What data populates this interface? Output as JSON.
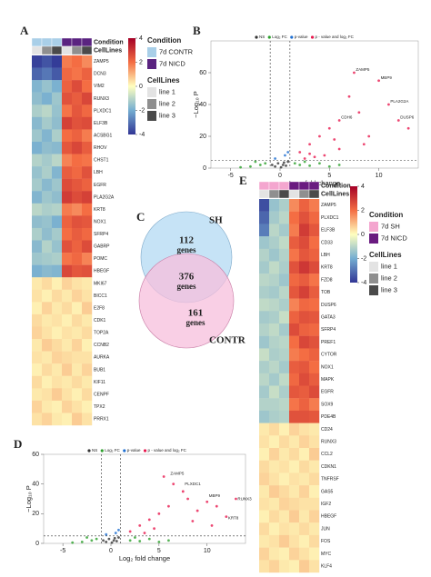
{
  "chart_data": [
    {
      "type": "heatmap",
      "label": "A",
      "annotation_titles": [
        "Condition",
        "CellLines"
      ],
      "conditions": [
        {
          "name": "7d CONTR",
          "color": "#a9cfe8"
        },
        {
          "name": "7d NICD",
          "color": "#5a2380"
        }
      ],
      "cell_lines": [
        {
          "name": "line 1",
          "color": "#e3e3e3"
        },
        {
          "name": "line 2",
          "color": "#8f8f8f"
        },
        {
          "name": "line 3",
          "color": "#4a4a4a"
        }
      ],
      "column_conditions": [
        0,
        0,
        0,
        1,
        1,
        1
      ],
      "column_cell_lines": [
        0,
        1,
        2,
        0,
        1,
        2
      ],
      "scale_lim": [
        -4,
        4
      ],
      "scale_ticks": [
        4,
        2,
        0,
        -2,
        -4
      ],
      "palette": [
        "#313695",
        "#74add1",
        "#ffffbf",
        "#f46d43",
        "#a50026"
      ],
      "genes": [
        "ZAMP5",
        "DCN3",
        "VIM2",
        "RUNX3",
        "PLXDC1",
        "ELF3B",
        "ACSBG1",
        "RHOV",
        "CHST1",
        "LBH",
        "EGFR",
        "PLA2G2A",
        "KRT8",
        "NOX1",
        "SFRP4",
        "GABRP",
        "POMC",
        "HBEGF",
        "MKI67",
        "BICC1",
        "E2F8",
        "CDK1",
        "TOP2A",
        "CCNB2",
        "AURKA",
        "BUB1",
        "KIF11",
        "CENPF",
        "TPX2",
        "PRRX1"
      ],
      "values": [
        [
          -3.8,
          -3.5,
          -3.9,
          1.8,
          2.0,
          1.6
        ],
        [
          -3.2,
          -2.9,
          -3.4,
          2.1,
          1.9,
          2.2
        ],
        [
          -1.8,
          -1.5,
          -1.9,
          2.2,
          2.6,
          2.0
        ],
        [
          -1.6,
          -1.9,
          -1.4,
          2.5,
          2.3,
          2.7
        ],
        [
          -1.2,
          -1.0,
          -1.5,
          1.9,
          2.4,
          2.1
        ],
        [
          -1.7,
          -1.3,
          -1.6,
          2.8,
          2.5,
          2.6
        ],
        [
          -1.4,
          -1.8,
          -1.2,
          2.0,
          2.2,
          1.8
        ],
        [
          -1.9,
          -1.6,
          -1.7,
          2.4,
          2.7,
          2.3
        ],
        [
          -1.1,
          -1.3,
          -1.0,
          1.7,
          2.0,
          1.9
        ],
        [
          -1.5,
          -1.2,
          -1.8,
          2.3,
          2.1,
          2.5
        ],
        [
          -1.3,
          -1.7,
          -1.4,
          2.6,
          2.4,
          2.2
        ],
        [
          -1.8,
          -1.4,
          -1.6,
          2.9,
          2.6,
          2.8
        ],
        [
          -1.0,
          -1.2,
          -1.1,
          1.8,
          1.6,
          2.0
        ],
        [
          -1.6,
          -1.5,
          -1.9,
          2.2,
          2.5,
          2.4
        ],
        [
          -1.2,
          -1.6,
          -1.3,
          2.0,
          2.3,
          2.1
        ],
        [
          -1.7,
          -1.1,
          -1.5,
          2.5,
          2.2,
          2.6
        ],
        [
          -1.4,
          -1.3,
          -1.2,
          1.9,
          2.1,
          1.7
        ],
        [
          -1.9,
          -1.7,
          -1.8,
          2.7,
          2.4,
          2.5
        ],
        [
          0.3,
          0.5,
          0.2,
          0.6,
          0.4,
          0.3
        ],
        [
          0.4,
          0.2,
          0.5,
          0.3,
          0.6,
          0.4
        ],
        [
          0.2,
          0.6,
          0.3,
          0.5,
          0.2,
          0.7
        ],
        [
          0.5,
          0.3,
          0.4,
          0.2,
          0.5,
          0.3
        ],
        [
          0.6,
          0.4,
          0.2,
          0.4,
          0.3,
          0.5
        ],
        [
          0.3,
          0.7,
          0.5,
          0.3,
          0.6,
          0.2
        ],
        [
          0.4,
          0.3,
          0.6,
          0.5,
          0.4,
          0.4
        ],
        [
          0.2,
          0.5,
          0.3,
          0.7,
          0.3,
          0.6
        ],
        [
          0.5,
          0.2,
          0.4,
          0.3,
          0.5,
          0.3
        ],
        [
          0.3,
          0.4,
          0.7,
          0.4,
          0.2,
          0.5
        ],
        [
          0.6,
          0.3,
          0.2,
          0.6,
          0.4,
          0.2
        ],
        [
          0.4,
          0.6,
          0.3,
          0.2,
          0.7,
          0.4
        ]
      ]
    },
    {
      "type": "volcano",
      "label": "B",
      "x_label": "Log₂ fold change",
      "y_label": "−Log₁₀ P",
      "xlim": [
        -7,
        14
      ],
      "ylim": [
        0,
        80
      ],
      "xticks": [
        -5,
        0,
        5,
        10
      ],
      "yticks": [
        0,
        20,
        40,
        60
      ],
      "fc_cutoff": [
        -1,
        1
      ],
      "p_cutoff": 5,
      "series": [
        {
          "name": "NS",
          "color": "#333333",
          "x": [
            -0.5,
            0.3,
            0.6,
            -0.2,
            0.8,
            0.1,
            -0.8,
            0.4
          ],
          "y": [
            1,
            2,
            1.5,
            3,
            4,
            0.5,
            2,
            3.5
          ]
        },
        {
          "name": "Log₂ FC",
          "color": "#2ca02c",
          "x": [
            -3,
            -2,
            -1.5,
            2,
            3,
            4,
            -4,
            2.5,
            5,
            -2.5,
            6,
            1.5
          ],
          "y": [
            1,
            2,
            3,
            2,
            1.5,
            3,
            0.5,
            4,
            1,
            4,
            2,
            3
          ]
        },
        {
          "name": "p-value",
          "color": "#1f6fd1",
          "x": [
            0.5,
            -0.5,
            0.8
          ],
          "y": [
            8,
            6,
            10
          ]
        },
        {
          "name": "p - value and log₂ FC",
          "color": "#e8194f",
          "x": [
            2,
            3,
            4,
            5,
            6,
            7,
            7.5,
            8,
            10,
            11,
            12,
            9,
            6,
            4.5,
            3.5,
            8.5,
            13,
            5.5,
            2.5,
            3
          ],
          "y": [
            10,
            15,
            20,
            25,
            30,
            45,
            60,
            35,
            55,
            40,
            30,
            20,
            12,
            8,
            7,
            15,
            25,
            18,
            6,
            9
          ]
        }
      ],
      "annotations": [
        {
          "text": "ZAMP5",
          "x": 7.5,
          "y": 60
        },
        {
          "text": "MBP9",
          "x": 10,
          "y": 55
        },
        {
          "text": "PLA2G2A",
          "x": 11,
          "y": 40
        },
        {
          "text": "CDH6",
          "x": 6,
          "y": 30
        },
        {
          "text": "DUSP6",
          "x": 12,
          "y": 30
        }
      ]
    },
    {
      "type": "venn",
      "label": "C",
      "sets": [
        {
          "name": "SH",
          "color": "#c6e3f6"
        },
        {
          "name": "CONTR",
          "color": "#f7bfdc"
        }
      ],
      "counts": [
        112,
        376,
        161
      ],
      "unit": "genes"
    },
    {
      "type": "volcano",
      "label": "D",
      "x_label": "Log₂ fold change",
      "y_label": "−Log₁₀ P",
      "xlim": [
        -7,
        14
      ],
      "ylim": [
        0,
        60
      ],
      "xticks": [
        -5,
        0,
        5,
        10
      ],
      "yticks": [
        0,
        20,
        40,
        60
      ],
      "fc_cutoff": [
        -1,
        1
      ],
      "p_cutoff": 5,
      "series": [
        {
          "name": "NS",
          "color": "#333333",
          "x": [
            -0.5,
            0.3,
            0.6,
            -0.2,
            0.8,
            0.1,
            -0.8,
            0.4
          ],
          "y": [
            1,
            2,
            1.5,
            3,
            4,
            0.5,
            2,
            3.5
          ]
        },
        {
          "name": "Log₂ FC",
          "color": "#2ca02c",
          "x": [
            -3,
            -2,
            -1.5,
            2,
            3,
            4,
            -4,
            2.5,
            5,
            -2.5,
            6
          ],
          "y": [
            1,
            2,
            3,
            2,
            1.5,
            3,
            0.5,
            4,
            1,
            4,
            2
          ]
        },
        {
          "name": "p-value",
          "color": "#1f6fd1",
          "x": [
            0.5,
            -0.5,
            0.8
          ],
          "y": [
            7,
            6,
            9
          ]
        },
        {
          "name": "p - value and log₂ FC",
          "color": "#e8194f",
          "x": [
            2,
            3,
            4,
            5,
            6,
            6.5,
            7.5,
            8,
            9,
            10,
            11,
            12,
            13,
            4.5,
            3.5,
            8.5,
            10.5,
            5.5
          ],
          "y": [
            8,
            12,
            16,
            20,
            25,
            40,
            35,
            30,
            22,
            28,
            25,
            18,
            30,
            10,
            7,
            15,
            12,
            45
          ]
        }
      ],
      "annotations": [
        {
          "text": "ZAMP5",
          "x": 6,
          "y": 45
        },
        {
          "text": "PLXDC1",
          "x": 7.5,
          "y": 38
        },
        {
          "text": "MBP9",
          "x": 10,
          "y": 30
        },
        {
          "text": "RUNX3",
          "x": 13,
          "y": 28
        },
        {
          "text": "KRT8",
          "x": 12,
          "y": 15
        }
      ]
    },
    {
      "type": "heatmap",
      "label": "E",
      "annotation_titles": [
        "Condition",
        "CellLines"
      ],
      "conditions": [
        {
          "name": "7d SH",
          "color": "#f4a6cf"
        },
        {
          "name": "7d NICD",
          "color": "#6a1b80"
        }
      ],
      "cell_lines": [
        {
          "name": "line 1",
          "color": "#e3e3e3"
        },
        {
          "name": "line 2",
          "color": "#8f8f8f"
        },
        {
          "name": "line 3",
          "color": "#4a4a4a"
        }
      ],
      "column_conditions": [
        0,
        0,
        0,
        1,
        1,
        1
      ],
      "column_cell_lines": [
        0,
        1,
        2,
        0,
        1,
        2
      ],
      "scale_lim": [
        -4,
        4
      ],
      "scale_ticks": [
        4,
        2,
        0,
        -2,
        -4
      ],
      "palette": [
        "#313695",
        "#74add1",
        "#ffffbf",
        "#f46d43",
        "#a50026"
      ],
      "genes": [
        "ZAMP5",
        "PLXDC1",
        "ELF3B",
        "CD33",
        "LBH",
        "KRT8",
        "FZD8",
        "TOB",
        "DUSP6",
        "GATA3",
        "SFRP4",
        "PREF1",
        "CYTOR",
        "NOX1",
        "MAPK",
        "EGFR",
        "SOX9",
        "PDE4B",
        "CD24",
        "RUNX3",
        "CCL2",
        "CDKN1",
        "TNFRSF",
        "GAS5",
        "IGF2",
        "HBEGF",
        "JUN",
        "FOS",
        "MYC",
        "KLF4"
      ],
      "values": [
        [
          -3.6,
          -1.5,
          -1.2,
          1.6,
          2.2,
          1.8
        ],
        [
          -3.2,
          -1.3,
          -1.0,
          2.0,
          2.5,
          2.1
        ],
        [
          -2.8,
          -1.0,
          -1.3,
          1.8,
          2.9,
          2.4
        ],
        [
          -1.4,
          -1.2,
          -0.9,
          2.3,
          2.6,
          2.0
        ],
        [
          -1.1,
          -1.4,
          -1.1,
          1.9,
          2.4,
          2.2
        ],
        [
          -1.3,
          -0.9,
          -1.2,
          2.5,
          3.0,
          2.6
        ],
        [
          -1.0,
          -1.1,
          -1.4,
          2.1,
          2.3,
          1.9
        ],
        [
          -1.2,
          -1.3,
          -1.0,
          2.4,
          2.8,
          2.3
        ],
        [
          -0.9,
          -1.0,
          -1.2,
          1.7,
          2.1,
          2.0
        ],
        [
          -1.3,
          -1.2,
          -0.8,
          2.2,
          2.5,
          2.4
        ],
        [
          -1.1,
          -0.9,
          -1.3,
          2.6,
          2.2,
          2.1
        ],
        [
          -1.4,
          -1.1,
          -1.0,
          2.0,
          2.7,
          2.5
        ],
        [
          -0.8,
          -1.2,
          -1.1,
          1.8,
          2.0,
          2.2
        ],
        [
          -1.2,
          -1.0,
          -1.3,
          2.3,
          2.4,
          2.0
        ],
        [
          -1.0,
          -1.3,
          -0.9,
          2.1,
          2.6,
          2.3
        ],
        [
          -1.3,
          -0.8,
          -1.2,
          2.4,
          2.3,
          2.6
        ],
        [
          -1.1,
          -1.1,
          -1.0,
          1.9,
          2.2,
          1.8
        ],
        [
          -1.4,
          -1.2,
          -1.1,
          2.5,
          2.5,
          2.4
        ],
        [
          0.3,
          0.5,
          0.2,
          0.6,
          0.4,
          0.3
        ],
        [
          0.4,
          0.2,
          0.5,
          0.3,
          0.6,
          0.4
        ],
        [
          0.2,
          0.6,
          0.3,
          0.5,
          0.2,
          0.7
        ],
        [
          0.5,
          0.3,
          0.4,
          0.2,
          0.5,
          0.3
        ],
        [
          0.6,
          0.4,
          0.2,
          0.4,
          0.3,
          0.5
        ],
        [
          0.3,
          0.7,
          0.5,
          0.3,
          0.6,
          0.2
        ],
        [
          0.4,
          0.3,
          0.6,
          0.5,
          0.4,
          0.4
        ],
        [
          0.2,
          0.5,
          0.3,
          0.7,
          0.3,
          0.6
        ],
        [
          0.5,
          0.2,
          0.4,
          0.3,
          0.5,
          0.3
        ],
        [
          0.3,
          0.4,
          0.7,
          0.4,
          0.2,
          0.5
        ],
        [
          0.6,
          0.3,
          0.2,
          0.6,
          0.4,
          0.2
        ],
        [
          0.4,
          0.6,
          0.3,
          0.2,
          0.7,
          0.4
        ]
      ]
    }
  ]
}
